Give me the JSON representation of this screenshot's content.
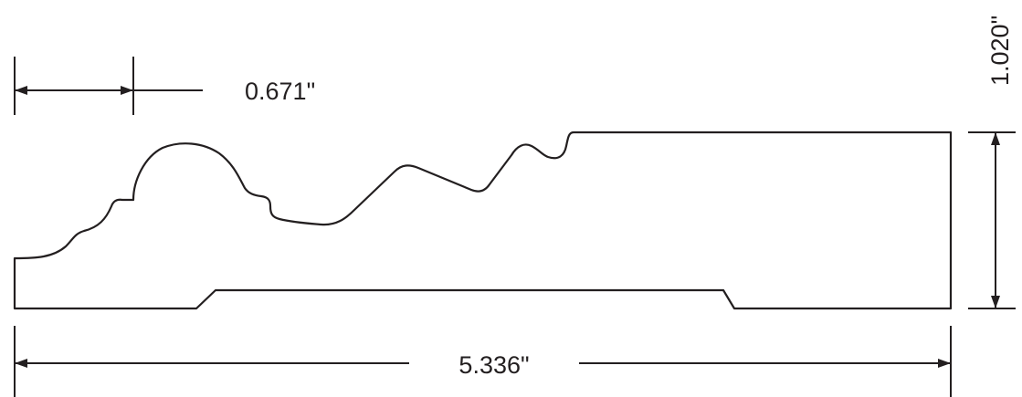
{
  "drawing": {
    "dimensions": {
      "top_width": "0.671\"",
      "overall_height": "1.020\"",
      "overall_width": "5.336\""
    },
    "colors": {
      "line": "#231f20",
      "background": "#ffffff"
    }
  }
}
